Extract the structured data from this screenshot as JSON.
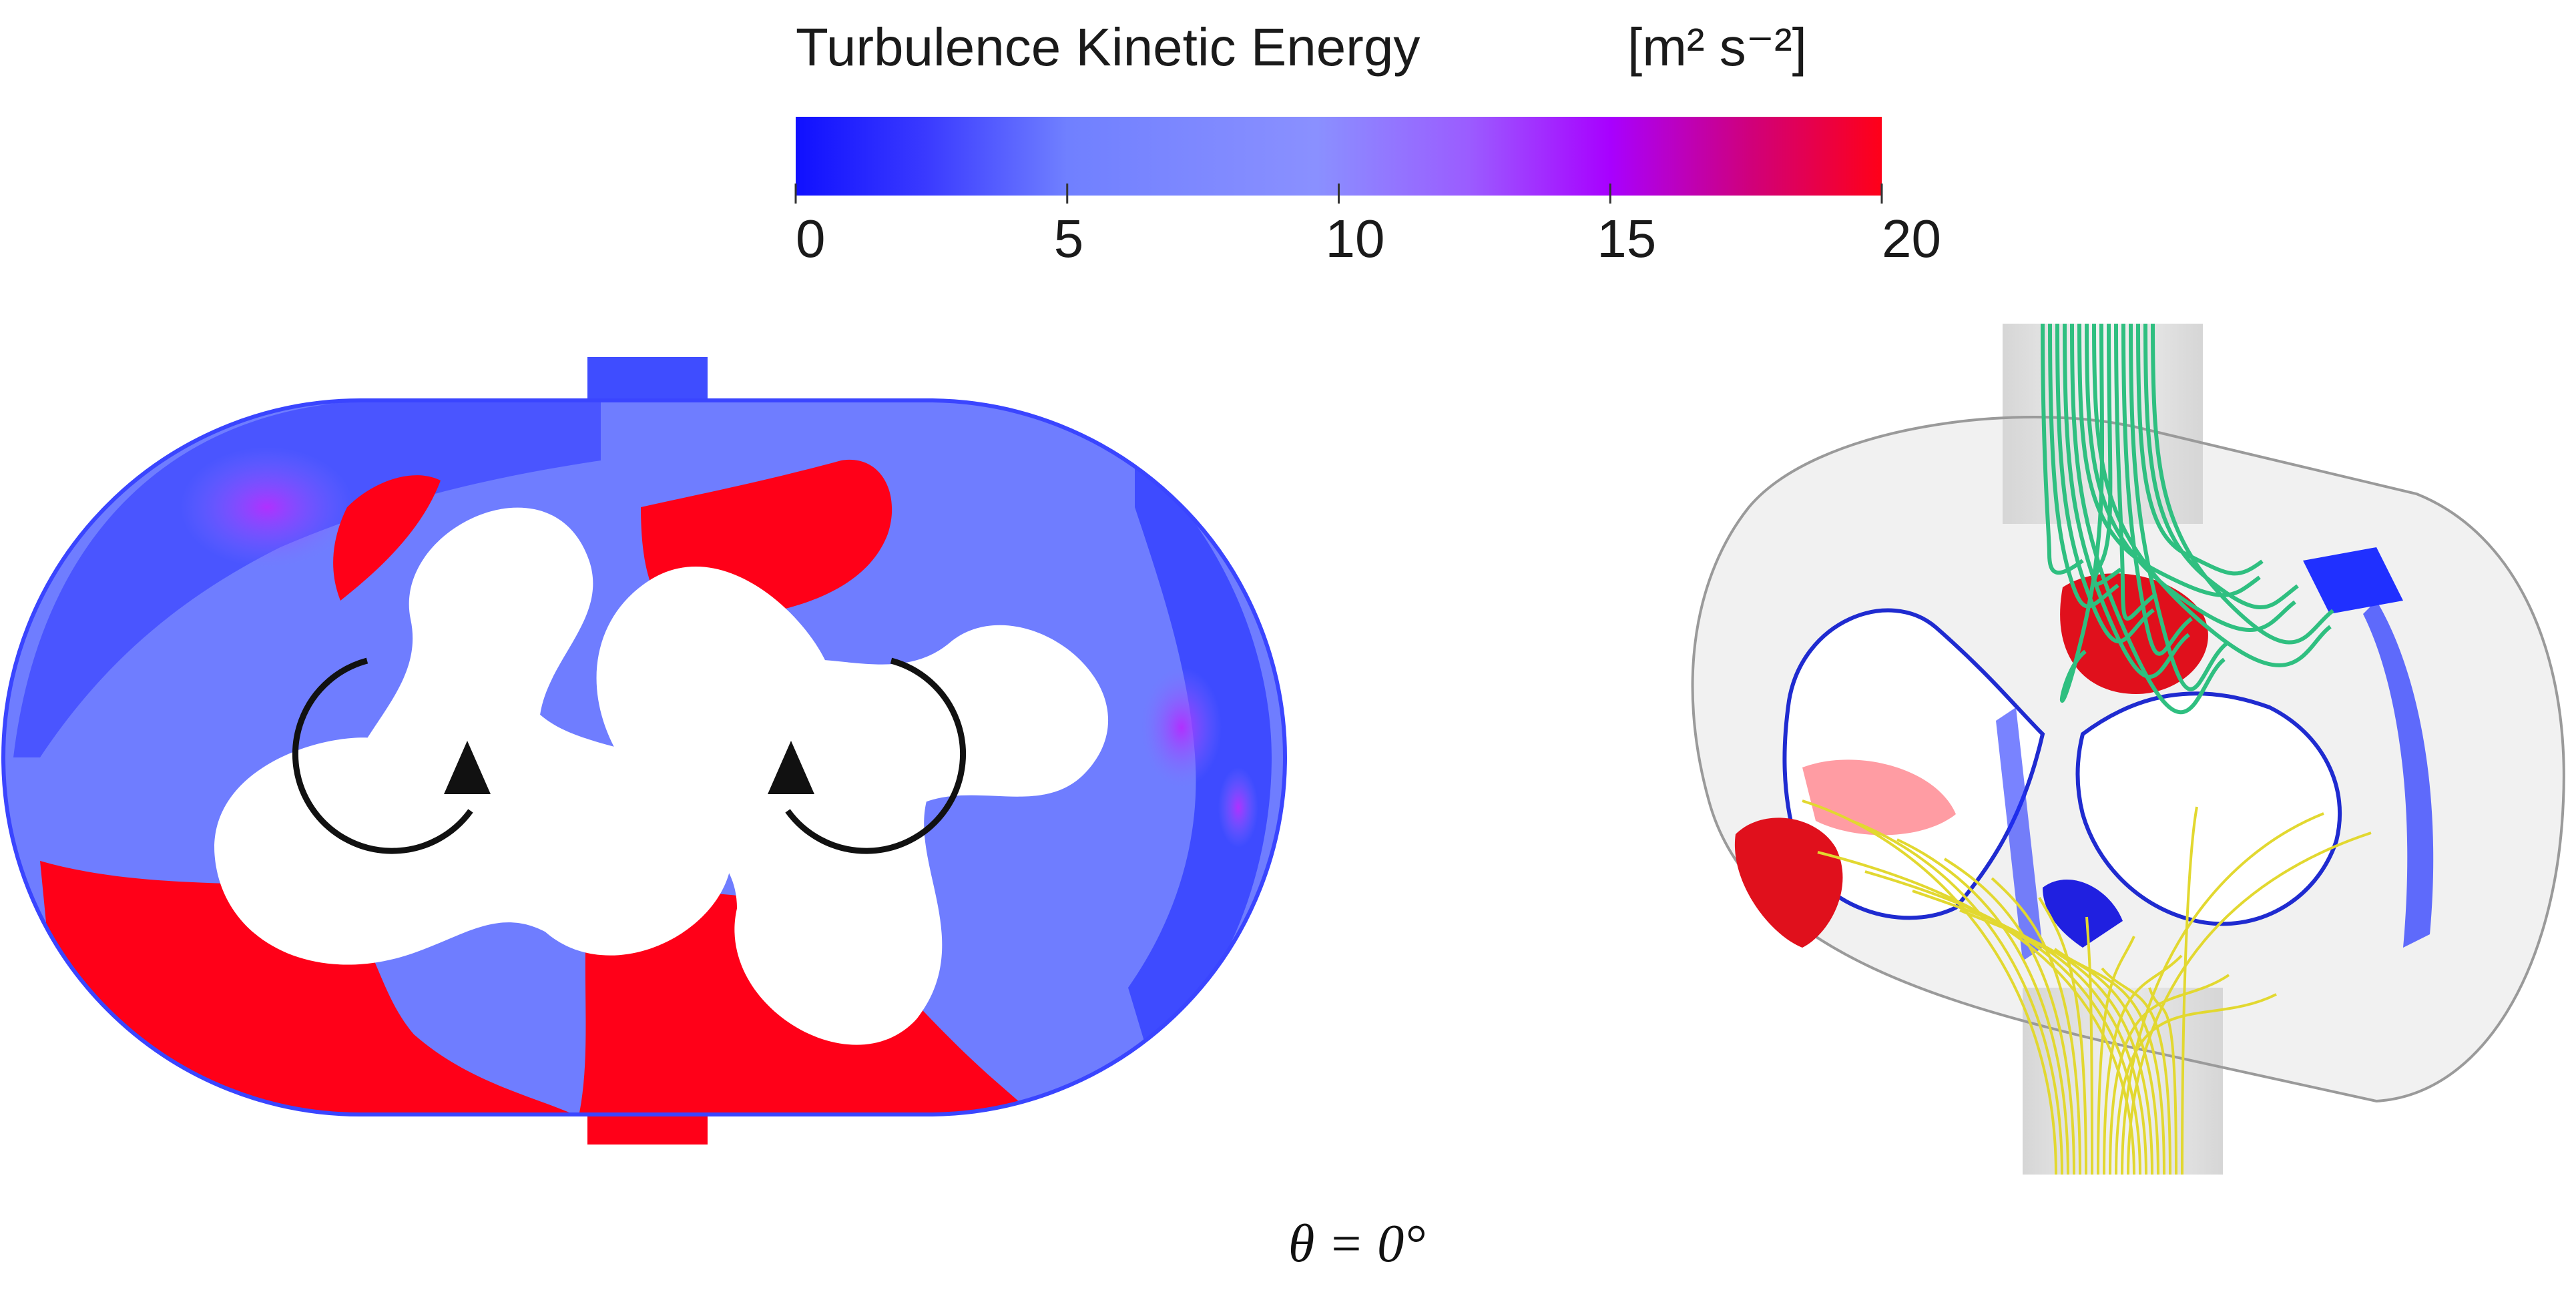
{
  "colorbar": {
    "title": "Turbulence Kinetic Energy",
    "unit": "[m² s⁻²]",
    "ticks": [
      "0",
      "5",
      "10",
      "15",
      "20"
    ],
    "min": 0,
    "max": 20,
    "colors": {
      "low": "#1a1aff",
      "mid": "#7f8cff",
      "high_purple": "#a800ff",
      "max": "#ff0018"
    }
  },
  "caption": "θ = 0°",
  "panels": {
    "left": {
      "type": "2D contour cross-section of twin three-lobe rotor pump",
      "rotation_arrows": [
        "counterclockwise-arrow-icon",
        "clockwise-arrow-icon"
      ]
    },
    "right": {
      "type": "3D isosurface view with streamlines",
      "inlet_streamline_color": "#2fbf80",
      "outlet_streamline_color": "#e2d830"
    }
  }
}
